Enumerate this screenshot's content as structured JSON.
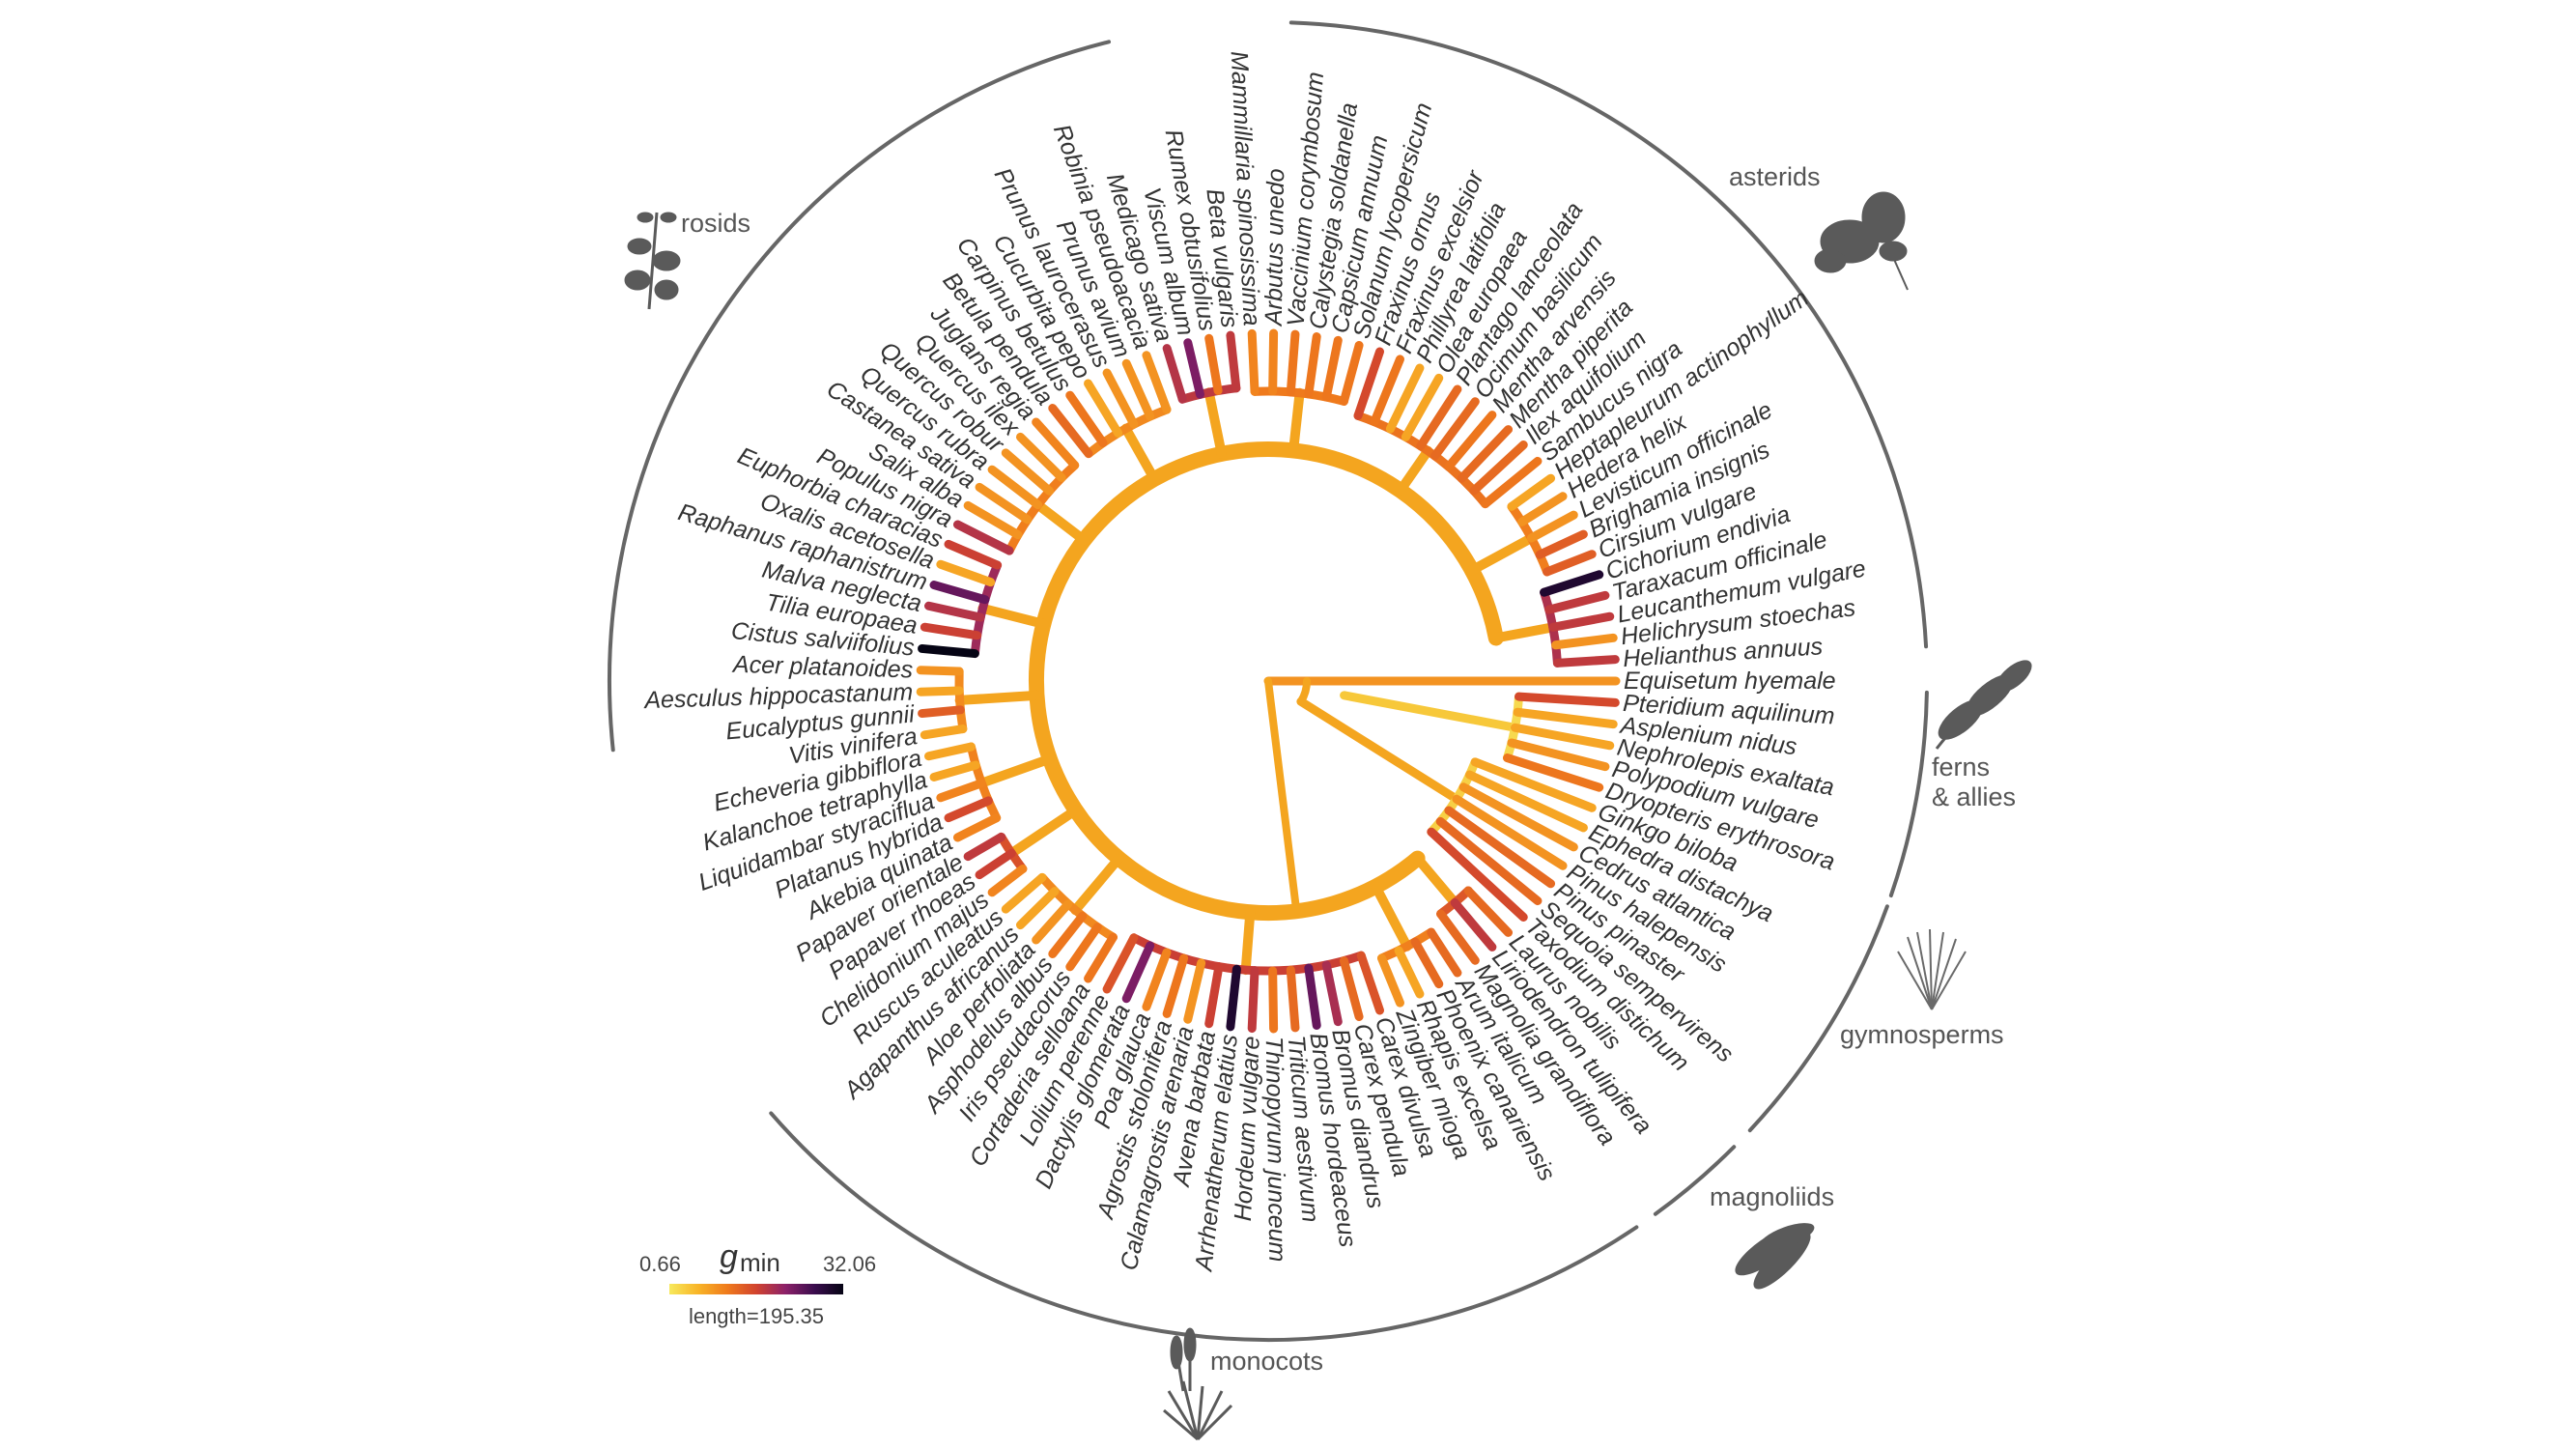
{
  "legend": {
    "min_value": "0.66",
    "variable_symbol": "g",
    "variable_subscript": "min",
    "max_value": "32.06",
    "length_label": "length=195.35",
    "colormap": [
      "#f7e95c",
      "#f8b427",
      "#ef7a1c",
      "#d1432e",
      "#8c2169",
      "#3b0d4e",
      "#050414"
    ]
  },
  "clades": [
    {
      "label": "rosids",
      "icon": "leafy-branch-icon"
    },
    {
      "label": "asterids",
      "icon": "compound-leaf-icon"
    },
    {
      "label": "ferns",
      "label2": "& allies",
      "icon": "fern-frond-icon"
    },
    {
      "label": "gymnosperms",
      "icon": "conifer-needles-icon"
    },
    {
      "label": "magnoliids",
      "icon": "magnolia-leaves-icon"
    },
    {
      "label": "monocots",
      "icon": "grass-tuft-icon"
    }
  ],
  "tips": [
    {
      "name": "Helianthus annuus",
      "gmin": 12
    },
    {
      "name": "Helichrysum stoechas",
      "gmin": 4
    },
    {
      "name": "Leucanthemum vulgare",
      "gmin": 12
    },
    {
      "name": "Taraxacum officinale",
      "gmin": 12
    },
    {
      "name": "Cichorium endivia",
      "gmin": 28
    },
    {
      "name": "Cirsium vulgare",
      "gmin": 8
    },
    {
      "name": "Brighamia insignis",
      "gmin": 8
    },
    {
      "name": "Levisticum officinale",
      "gmin": 4
    },
    {
      "name": "Hedera helix",
      "gmin": 4
    },
    {
      "name": "Heptapleurum actinophyllum",
      "gmin": 3
    },
    {
      "name": "Sambucus nigra",
      "gmin": 6
    },
    {
      "name": "Ilex aquifolium",
      "gmin": 7
    },
    {
      "name": "Mentha piperita",
      "gmin": 7
    },
    {
      "name": "Mentha arvensis",
      "gmin": 6
    },
    {
      "name": "Ocimum basilicum",
      "gmin": 7
    },
    {
      "name": "Plantago lanceolata",
      "gmin": 7
    },
    {
      "name": "Olea europaea",
      "gmin": 3
    },
    {
      "name": "Phillyrea latifolia",
      "gmin": 3
    },
    {
      "name": "Fraxinus excelsior",
      "gmin": 6
    },
    {
      "name": "Fraxinus ornus",
      "gmin": 10
    },
    {
      "name": "Solanum lycopersicum",
      "gmin": 6
    },
    {
      "name": "Capsicum annuum",
      "gmin": 6
    },
    {
      "name": "Calystegia soldanella",
      "gmin": 6
    },
    {
      "name": "Vaccinium corymbosum",
      "gmin": 6
    },
    {
      "name": "Arbutus unedo",
      "gmin": 5
    },
    {
      "name": "Mammillaria spinosissima",
      "gmin": 5
    },
    {
      "name": "Beta vulgaris",
      "gmin": 12
    },
    {
      "name": "Rumex obtusifolius",
      "gmin": 6
    },
    {
      "name": "Viscum album",
      "gmin": 18
    },
    {
      "name": "Medicago sativa",
      "gmin": 13
    },
    {
      "name": "Robinia pseudoacacia",
      "gmin": 4
    },
    {
      "name": "Prunus avium",
      "gmin": 4
    },
    {
      "name": "Prunus laurocerasus",
      "gmin": 4
    },
    {
      "name": "Cucurbita pepo",
      "gmin": 3
    },
    {
      "name": "Carpinus betulus",
      "gmin": 6
    },
    {
      "name": "Betula pendula",
      "gmin": 7
    },
    {
      "name": "Juglans regia",
      "gmin": 5
    },
    {
      "name": "Quercus ilex",
      "gmin": 4
    },
    {
      "name": "Quercus robur",
      "gmin": 4
    },
    {
      "name": "Quercus rubra",
      "gmin": 4
    },
    {
      "name": "Castanea sativa",
      "gmin": 4
    },
    {
      "name": "Salix alba",
      "gmin": 4
    },
    {
      "name": "Populus nigra",
      "gmin": 13
    },
    {
      "name": "Euphorbia characias",
      "gmin": 11
    },
    {
      "name": "Oxalis acetosella",
      "gmin": 3
    },
    {
      "name": "Raphanus raphanistrum",
      "gmin": 20
    },
    {
      "name": "Malva neglecta",
      "gmin": 13
    },
    {
      "name": "Tilia europaea",
      "gmin": 11
    },
    {
      "name": "Cistus salviifolius",
      "gmin": 32
    },
    {
      "name": "Acer platanoides",
      "gmin": 4
    },
    {
      "name": "Aesculus hippocastanum",
      "gmin": 3
    },
    {
      "name": "Eucalyptus gunnii",
      "gmin": 8
    },
    {
      "name": "Vitis vinifera",
      "gmin": 3
    },
    {
      "name": "Echeveria gibbiflora",
      "gmin": 3
    },
    {
      "name": "Kalanchoe tetraphylla",
      "gmin": 3
    },
    {
      "name": "Liquidambar styraciflua",
      "gmin": 5
    },
    {
      "name": "Platanus hybrida",
      "gmin": 10
    },
    {
      "name": "Akebia quinata",
      "gmin": 5
    },
    {
      "name": "Papaver orientale",
      "gmin": 12
    },
    {
      "name": "Papaver rhoeas",
      "gmin": 11
    },
    {
      "name": "Chelidonium majus",
      "gmin": 5
    },
    {
      "name": "Ruscus aculeatus",
      "gmin": 3
    },
    {
      "name": "Agapanthus africanus",
      "gmin": 3
    },
    {
      "name": "Aloe perfoliata",
      "gmin": 4
    },
    {
      "name": "Asphodelus albus",
      "gmin": 6
    },
    {
      "name": "Iris pseudacorus",
      "gmin": 6
    },
    {
      "name": "Cortaderia selloana",
      "gmin": 6
    },
    {
      "name": "Lolium perenne",
      "gmin": 9
    },
    {
      "name": "Dactylis glomerata",
      "gmin": 18
    },
    {
      "name": "Poa glauca",
      "gmin": 5
    },
    {
      "name": "Agrostis stolonifera",
      "gmin": 6
    },
    {
      "name": "Calamagrostis arenaria",
      "gmin": 4
    },
    {
      "name": "Avena barbata",
      "gmin": 11
    },
    {
      "name": "Arrhenatherum elatius",
      "gmin": 28
    },
    {
      "name": "Hordeum vulgare",
      "gmin": 12
    },
    {
      "name": "Thinopyrum junceum",
      "gmin": 6
    },
    {
      "name": "Triticum aestivum",
      "gmin": 7
    },
    {
      "name": "Bromus hordeaceus",
      "gmin": 20
    },
    {
      "name": "Bromus diandrus",
      "gmin": 14
    },
    {
      "name": "Carex pendula",
      "gmin": 7
    },
    {
      "name": "Carex divulsa",
      "gmin": 9
    },
    {
      "name": "Zingiber mioga",
      "gmin": 4
    },
    {
      "name": "Rhapis excelsa",
      "gmin": 3
    },
    {
      "name": "Phoenix canariensis",
      "gmin": 7
    },
    {
      "name": "Arum italicum",
      "gmin": 7
    },
    {
      "name": "Magnolia grandiflora",
      "gmin": 7
    },
    {
      "name": "Liriodendron tulipifera",
      "gmin": 12
    },
    {
      "name": "Laurus nobilis",
      "gmin": 7
    },
    {
      "name": "Taxodium distichum",
      "gmin": 10
    },
    {
      "name": "Sequoia sempervirens",
      "gmin": 7
    },
    {
      "name": "Pinus pinaster",
      "gmin": 7
    },
    {
      "name": "Pinus halepensis",
      "gmin": 4
    },
    {
      "name": "Cedrus atlantica",
      "gmin": 4
    },
    {
      "name": "Ephedra distachya",
      "gmin": 3
    },
    {
      "name": "Ginkgo biloba",
      "gmin": 3
    },
    {
      "name": "Dryopteris erythrosora",
      "gmin": 6
    },
    {
      "name": "Polypodium vulgare",
      "gmin": 4
    },
    {
      "name": "Nephrolepis exaltata",
      "gmin": 3
    },
    {
      "name": "Asplenium nidus",
      "gmin": 3
    },
    {
      "name": "Pteridium aquilinum",
      "gmin": 10
    },
    {
      "name": "Equisetum hyemale",
      "gmin": 4
    }
  ]
}
